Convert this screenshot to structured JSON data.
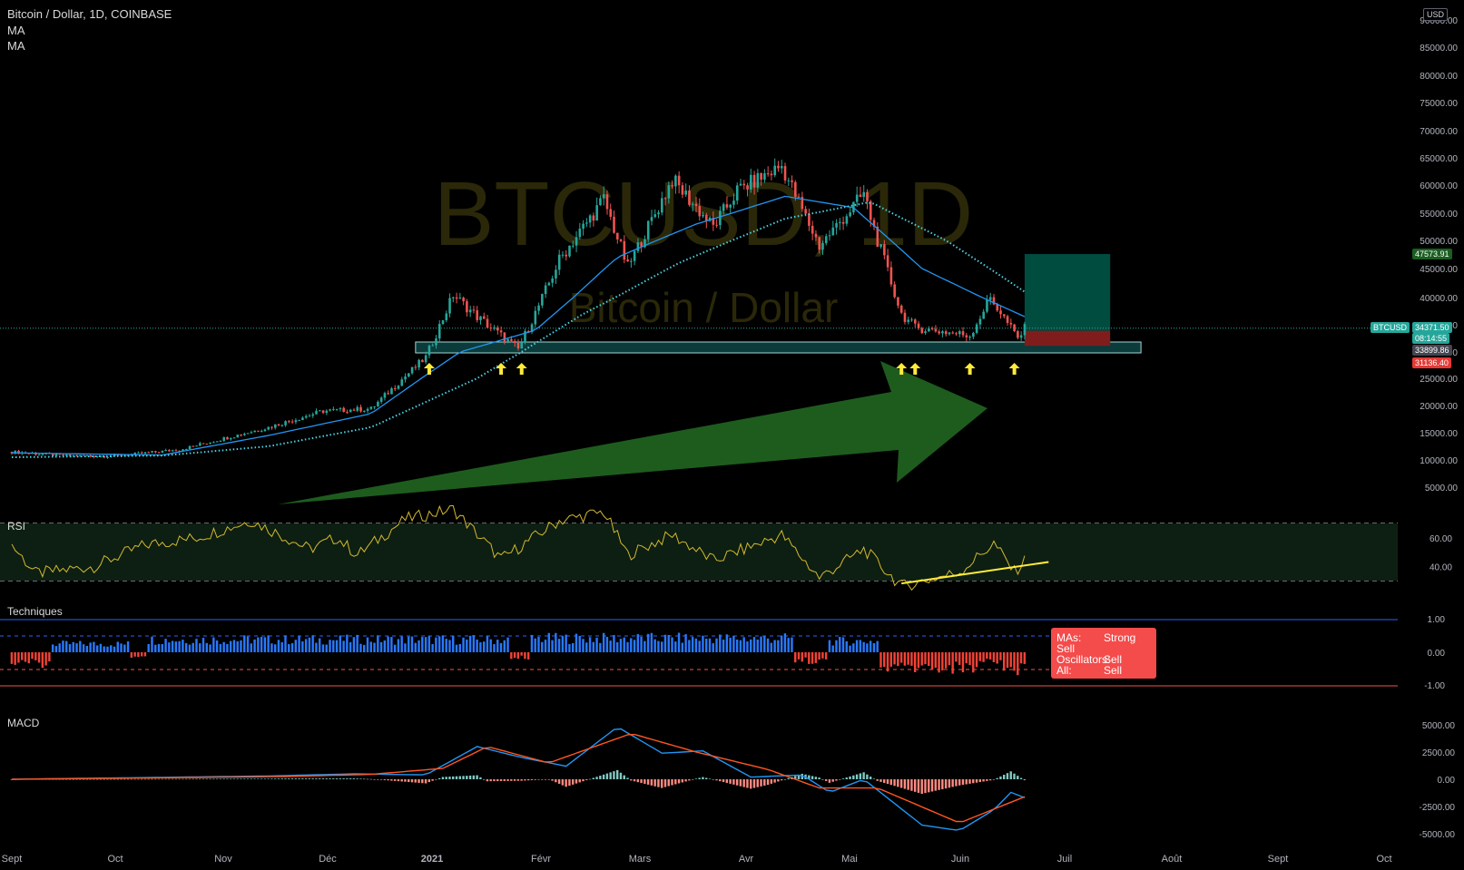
{
  "header": {
    "title": "Bitcoin / Dollar, 1D, COINBASE",
    "indicator_1": "MA",
    "indicator_2": "MA"
  },
  "watermark": {
    "symbol": "BTCUSD, 1D",
    "name": "Bitcoin / Dollar"
  },
  "currency_badge": "USD",
  "colors": {
    "up": "#26a69a",
    "down": "#ef5350",
    "ma_fast": "#2196f3",
    "ma_slow": "#4dd0e1",
    "rsi": "#d4b830",
    "arrow_green": "#1e5c1e",
    "annotation_yellow": "#ffeb3b",
    "tech_buy": "#2979ff",
    "tech_sell": "#f44336",
    "macd": "#2196f3",
    "signal": "#ff5722"
  },
  "price_tags": {
    "target": "47573.91",
    "last": "34371.50",
    "countdown": "08:14:55",
    "entry": "33899.86",
    "stop": "31136.40",
    "symbol": "BTCUSD"
  },
  "panes": {
    "rsi_label": "RSI",
    "tech_label": "Techniques",
    "macd_label": "MACD"
  },
  "techniques_summary": {
    "rows": [
      {
        "key": "MAs:",
        "value": "Strong Sell"
      },
      {
        "key": "Oscillators:",
        "value": "Sell"
      },
      {
        "key": "All:",
        "value": "Sell"
      }
    ]
  },
  "chart_data": [
    {
      "type": "candlestick",
      "title": "Bitcoin / Dollar, 1D, COINBASE",
      "yscale": "nonlinear",
      "y_ticks": [
        "90000.00",
        "85000.00",
        "80000.00",
        "75000.00",
        "70000.00",
        "65000.00",
        "60000.00",
        "55000.00",
        "50000.00",
        "45000.00",
        "40000.00",
        "35000.00",
        "30000.00",
        "25000.00",
        "20000.00",
        "15000.00",
        "10000.00",
        "5000.00"
      ],
      "x_ticks": [
        "Sept",
        "Oct",
        "Nov",
        "Déc",
        "2021",
        "Févr",
        "Mars",
        "Avr",
        "Mai",
        "Juin",
        "Juil",
        "Août",
        "Sept",
        "Oct"
      ],
      "close_anchors": [
        {
          "d": "2020-09-01",
          "v": 11500
        },
        {
          "d": "2020-09-15",
          "v": 10800
        },
        {
          "d": "2020-10-01",
          "v": 10700
        },
        {
          "d": "2020-10-20",
          "v": 11900
        },
        {
          "d": "2020-11-01",
          "v": 13800
        },
        {
          "d": "2020-11-15",
          "v": 16000
        },
        {
          "d": "2020-12-01",
          "v": 19000
        },
        {
          "d": "2020-12-15",
          "v": 19400
        },
        {
          "d": "2020-12-31",
          "v": 29000
        },
        {
          "d": "2021-01-08",
          "v": 40500
        },
        {
          "d": "2021-01-15",
          "v": 36500
        },
        {
          "d": "2021-01-27",
          "v": 30500
        },
        {
          "d": "2021-02-08",
          "v": 46500
        },
        {
          "d": "2021-02-21",
          "v": 57500
        },
        {
          "d": "2021-02-28",
          "v": 45200
        },
        {
          "d": "2021-03-13",
          "v": 61000
        },
        {
          "d": "2021-03-25",
          "v": 52500
        },
        {
          "d": "2021-04-01",
          "v": 59000
        },
        {
          "d": "2021-04-14",
          "v": 63500
        },
        {
          "d": "2021-04-25",
          "v": 49000
        },
        {
          "d": "2021-05-08",
          "v": 58500
        },
        {
          "d": "2021-05-12",
          "v": 50000
        },
        {
          "d": "2021-05-19",
          "v": 37000
        },
        {
          "d": "2021-05-23",
          "v": 34500
        },
        {
          "d": "2021-06-08",
          "v": 33000
        },
        {
          "d": "2021-06-14",
          "v": 40000
        },
        {
          "d": "2021-06-22",
          "v": 32500
        },
        {
          "d": "2021-06-24",
          "v": 34300
        }
      ],
      "ma_fast_anchors": [
        {
          "d": "2020-09-01",
          "v": 11300
        },
        {
          "d": "2020-10-15",
          "v": 10900
        },
        {
          "d": "2020-11-15",
          "v": 14500
        },
        {
          "d": "2020-12-15",
          "v": 18500
        },
        {
          "d": "2021-01-10",
          "v": 30000
        },
        {
          "d": "2021-02-01",
          "v": 34000
        },
        {
          "d": "2021-02-25",
          "v": 47000
        },
        {
          "d": "2021-03-20",
          "v": 53000
        },
        {
          "d": "2021-04-15",
          "v": 58000
        },
        {
          "d": "2021-05-05",
          "v": 56000
        },
        {
          "d": "2021-05-25",
          "v": 45000
        },
        {
          "d": "2021-06-24",
          "v": 36500
        }
      ],
      "ma_slow_anchors": [
        {
          "d": "2020-09-01",
          "v": 10500
        },
        {
          "d": "2020-10-15",
          "v": 10800
        },
        {
          "d": "2020-11-15",
          "v": 12500
        },
        {
          "d": "2020-12-15",
          "v": 16000
        },
        {
          "d": "2021-01-15",
          "v": 25000
        },
        {
          "d": "2021-02-15",
          "v": 37000
        },
        {
          "d": "2021-03-15",
          "v": 46000
        },
        {
          "d": "2021-04-15",
          "v": 54000
        },
        {
          "d": "2021-05-10",
          "v": 57000
        },
        {
          "d": "2021-06-01",
          "v": 50000
        },
        {
          "d": "2021-06-24",
          "v": 41000
        }
      ],
      "support_zone": {
        "from": "2020-12-28",
        "to": "2021-07-28",
        "low": 29000,
        "high": 31500
      },
      "long_position": {
        "from": "2021-06-24",
        "to": "2021-07-19",
        "entry": 33899.86,
        "target": 47573.91,
        "stop": 31136.4
      },
      "support_arrows": [
        "2021-01-01",
        "2021-01-22",
        "2021-01-28",
        "2021-05-19",
        "2021-05-23",
        "2021-06-08",
        "2021-06-21"
      ]
    },
    {
      "type": "line",
      "title": "RSI",
      "y_ticks": [
        "60.00",
        "40.00"
      ],
      "bands": [
        70,
        30
      ],
      "anchors": [
        {
          "d": "2020-09-01",
          "v": 55
        },
        {
          "d": "2020-09-08",
          "v": 35
        },
        {
          "d": "2020-09-25",
          "v": 40
        },
        {
          "d": "2020-10-10",
          "v": 55
        },
        {
          "d": "2020-10-25",
          "v": 60
        },
        {
          "d": "2020-11-10",
          "v": 72
        },
        {
          "d": "2020-11-27",
          "v": 52
        },
        {
          "d": "2020-12-05",
          "v": 60
        },
        {
          "d": "2020-12-11",
          "v": 48
        },
        {
          "d": "2020-12-25",
          "v": 73
        },
        {
          "d": "2021-01-08",
          "v": 80
        },
        {
          "d": "2021-01-22",
          "v": 45
        },
        {
          "d": "2021-02-08",
          "v": 72
        },
        {
          "d": "2021-02-21",
          "v": 78
        },
        {
          "d": "2021-02-28",
          "v": 48
        },
        {
          "d": "2021-03-13",
          "v": 62
        },
        {
          "d": "2021-03-25",
          "v": 44
        },
        {
          "d": "2021-04-14",
          "v": 62
        },
        {
          "d": "2021-04-25",
          "v": 32
        },
        {
          "d": "2021-05-08",
          "v": 52
        },
        {
          "d": "2021-05-19",
          "v": 26
        },
        {
          "d": "2021-06-05",
          "v": 36
        },
        {
          "d": "2021-06-15",
          "v": 56
        },
        {
          "d": "2021-06-21",
          "v": 36
        },
        {
          "d": "2021-06-24",
          "v": 44
        }
      ],
      "trendline": {
        "from": "2021-05-19",
        "to": "2021-07-01",
        "v_from": 28,
        "v_to": 43
      }
    },
    {
      "type": "bar",
      "title": "Techniques",
      "y_ticks": [
        "1.00",
        "0.00",
        "-1.00"
      ],
      "segments": [
        {
          "from": "2020-09-01",
          "to": "2020-09-12",
          "v": -0.4
        },
        {
          "from": "2020-09-13",
          "to": "2020-10-05",
          "v": 0.3
        },
        {
          "from": "2020-10-06",
          "to": "2020-10-10",
          "v": -0.2
        },
        {
          "from": "2020-10-11",
          "to": "2021-01-24",
          "v": 0.45
        },
        {
          "from": "2021-01-25",
          "to": "2021-01-30",
          "v": -0.2
        },
        {
          "from": "2021-01-31",
          "to": "2021-04-17",
          "v": 0.5
        },
        {
          "from": "2021-04-18",
          "to": "2021-04-27",
          "v": -0.3
        },
        {
          "from": "2021-04-28",
          "to": "2021-05-12",
          "v": 0.4
        },
        {
          "from": "2021-05-13",
          "to": "2021-06-10",
          "v": -0.55
        },
        {
          "from": "2021-06-11",
          "to": "2021-06-17",
          "v": -0.3
        },
        {
          "from": "2021-06-18",
          "to": "2021-06-24",
          "v": -0.6
        }
      ]
    },
    {
      "type": "line",
      "title": "MACD",
      "y_ticks": [
        "5000.00",
        "2500.00",
        "0.00",
        "-2500.00",
        "-5000.00"
      ],
      "macd_anchors": [
        {
          "d": "2020-09-01",
          "v": 0
        },
        {
          "d": "2020-11-15",
          "v": 300
        },
        {
          "d": "2020-12-10",
          "v": 500
        },
        {
          "d": "2020-12-31",
          "v": 400
        },
        {
          "d": "2021-01-15",
          "v": 3000
        },
        {
          "d": "2021-01-28",
          "v": 2000
        },
        {
          "d": "2021-02-10",
          "v": 1200
        },
        {
          "d": "2021-02-25",
          "v": 4800
        },
        {
          "d": "2021-03-10",
          "v": 2400
        },
        {
          "d": "2021-03-22",
          "v": 2600
        },
        {
          "d": "2021-04-05",
          "v": 200
        },
        {
          "d": "2021-04-20",
          "v": 400
        },
        {
          "d": "2021-04-28",
          "v": -1200
        },
        {
          "d": "2021-05-08",
          "v": 0
        },
        {
          "d": "2021-05-25",
          "v": -4200
        },
        {
          "d": "2021-06-05",
          "v": -4700
        },
        {
          "d": "2021-06-15",
          "v": -2800
        },
        {
          "d": "2021-06-20",
          "v": -1200
        },
        {
          "d": "2021-06-24",
          "v": -1700
        }
      ],
      "signal_anchors": [
        {
          "d": "2020-09-01",
          "v": 0
        },
        {
          "d": "2020-11-20",
          "v": 250
        },
        {
          "d": "2020-12-15",
          "v": 450
        },
        {
          "d": "2021-01-05",
          "v": 1000
        },
        {
          "d": "2021-01-18",
          "v": 3000
        },
        {
          "d": "2021-02-05",
          "v": 1500
        },
        {
          "d": "2021-03-01",
          "v": 4200
        },
        {
          "d": "2021-03-20",
          "v": 2500
        },
        {
          "d": "2021-04-10",
          "v": 900
        },
        {
          "d": "2021-04-25",
          "v": -800
        },
        {
          "d": "2021-05-12",
          "v": -800
        },
        {
          "d": "2021-06-05",
          "v": -4000
        },
        {
          "d": "2021-06-24",
          "v": -1600
        }
      ]
    }
  ]
}
